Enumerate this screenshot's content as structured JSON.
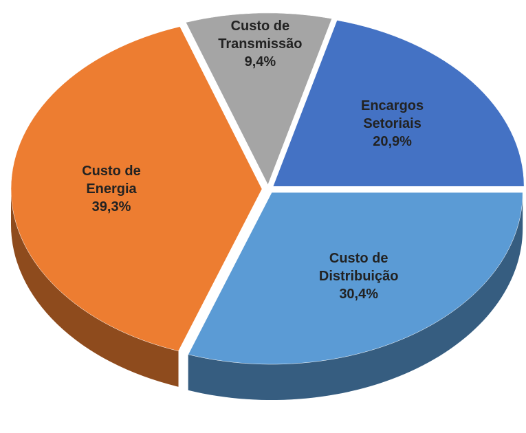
{
  "chart_data": {
    "type": "pie",
    "categories": [
      "Encargos Setoriais",
      "Custo de Transmissão",
      "Custo de Energia",
      "Custo de Distribuição"
    ],
    "values": [
      20.9,
      9.4,
      39.3,
      30.4
    ],
    "value_labels": [
      "20,9%",
      "9,4%",
      "39,3%",
      "30,4%"
    ],
    "colors": [
      "#4472c4",
      "#a5a5a5",
      "#ed7d31",
      "#5b9bd5"
    ]
  }
}
